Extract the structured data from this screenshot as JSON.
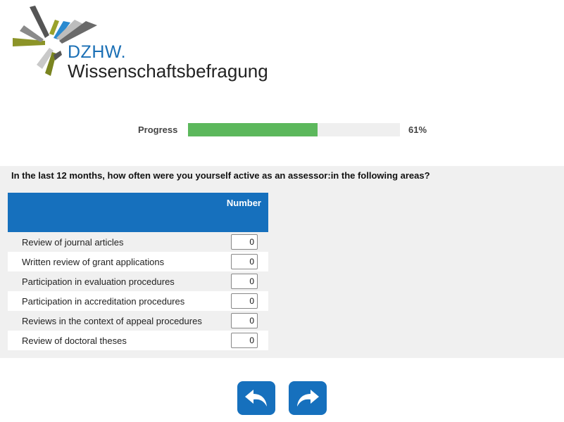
{
  "logo": {
    "org": "DZHW.",
    "name": "Wissenschaftsbefragung"
  },
  "progress": {
    "label": "Progress",
    "percent_text": "61%",
    "value": 0.61,
    "fill_color": "#5cb85c"
  },
  "question": {
    "text": "In the last 12 months, how often were you yourself active as an assessor:in the following areas?",
    "column_header": "Number",
    "rows": [
      {
        "label": "Review of journal articles",
        "value": "0"
      },
      {
        "label": "Written review of grant applications",
        "value": "0"
      },
      {
        "label": "Participation in evaluation procedures",
        "value": "0"
      },
      {
        "label": "Participation in accreditation procedures",
        "value": "0"
      },
      {
        "label": "Reviews in the context of appeal procedures",
        "value": "0"
      },
      {
        "label": "Review of doctoral theses",
        "value": "0"
      }
    ]
  },
  "navigation": {
    "back_icon": "undo-arrow-icon",
    "next_icon": "redo-arrow-icon",
    "accent_color": "#1670bd"
  }
}
